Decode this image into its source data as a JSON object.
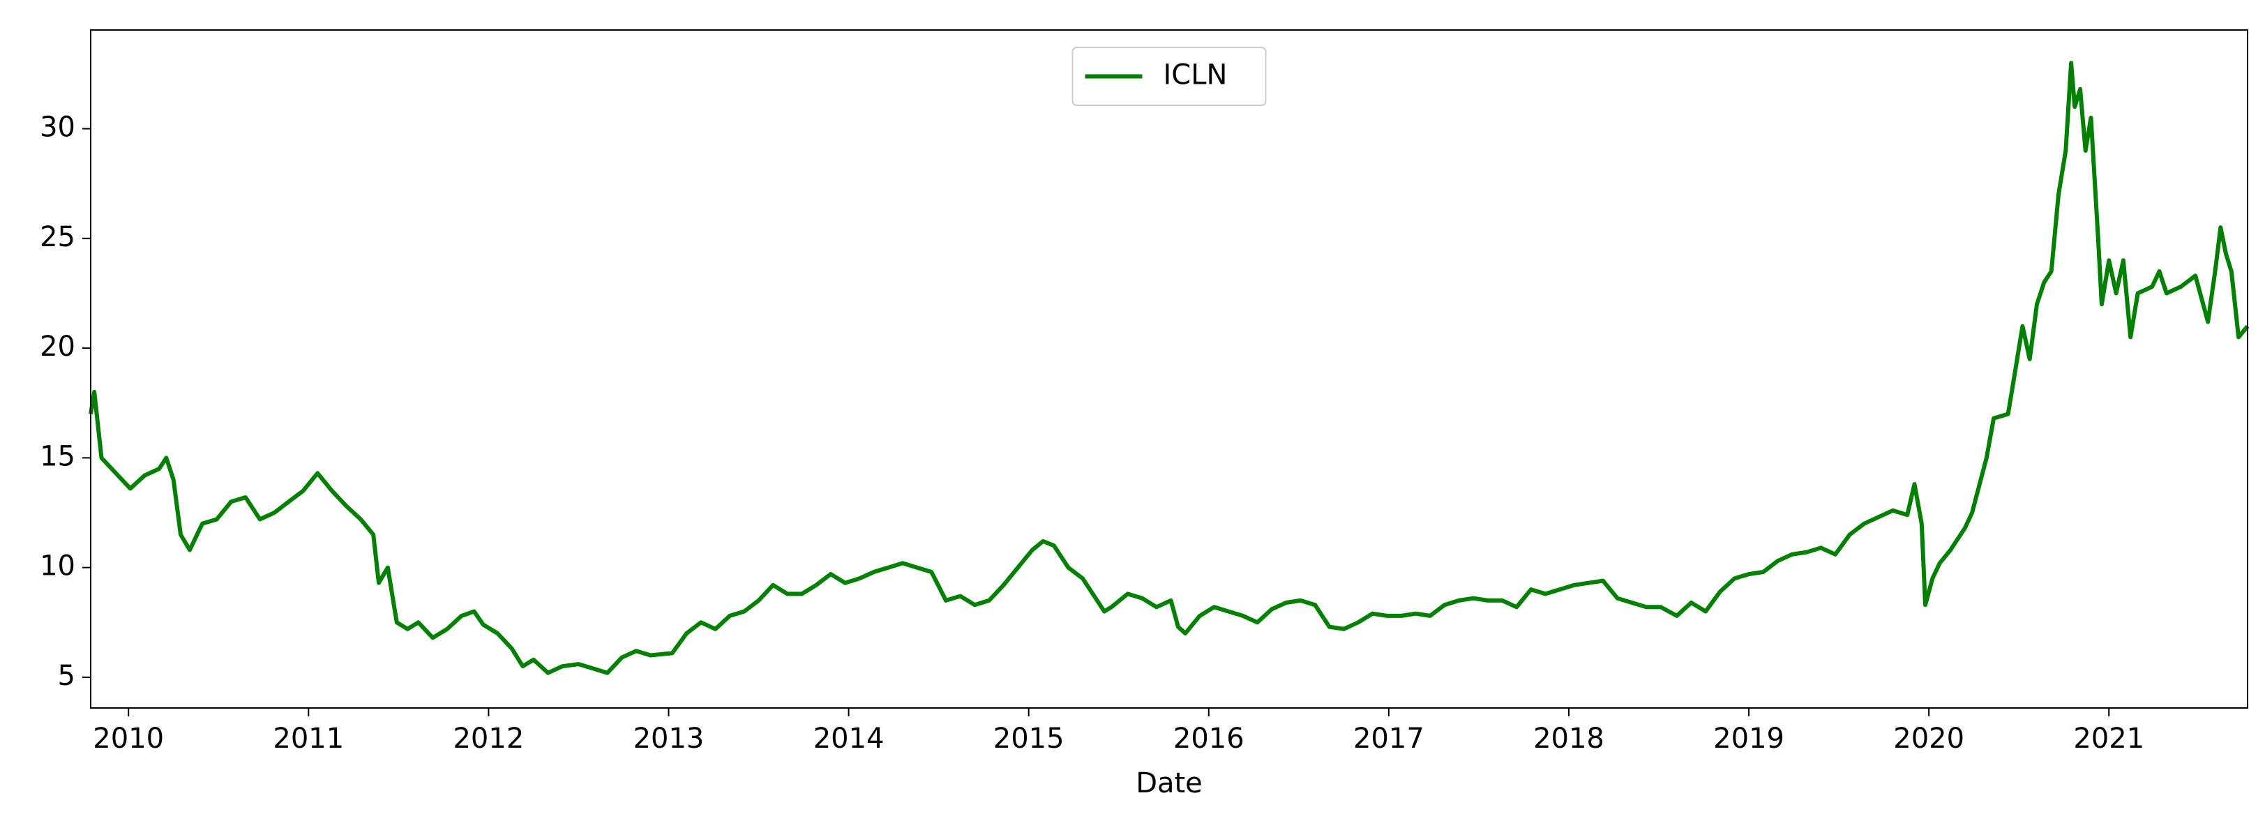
{
  "chart_data": {
    "type": "line",
    "xlabel": "Date",
    "x": [
      2009.79,
      2009.81,
      2009.85,
      2009.93,
      2010.01,
      2010.09,
      2010.17,
      2010.21,
      2010.25,
      2010.29,
      2010.34,
      2010.41,
      2010.49,
      2010.57,
      2010.65,
      2010.73,
      2010.81,
      2010.89,
      2010.97,
      2011.05,
      2011.13,
      2011.21,
      2011.29,
      2011.36,
      2011.39,
      2011.44,
      2011.49,
      2011.55,
      2011.61,
      2011.69,
      2011.77,
      2011.85,
      2011.92,
      2011.97,
      2012.05,
      2012.13,
      2012.19,
      2012.25,
      2012.33,
      2012.41,
      2012.5,
      2012.58,
      2012.66,
      2012.74,
      2012.82,
      2012.9,
      2013.02,
      2013.1,
      2013.18,
      2013.26,
      2013.34,
      2013.42,
      2013.5,
      2013.58,
      2013.66,
      2013.74,
      2013.82,
      2013.9,
      2013.98,
      2014.06,
      2014.14,
      2014.22,
      2014.3,
      2014.38,
      2014.46,
      2014.54,
      2014.62,
      2014.7,
      2014.78,
      2014.86,
      2014.94,
      2015.02,
      2015.08,
      2015.14,
      2015.22,
      2015.3,
      2015.38,
      2015.42,
      2015.46,
      2015.55,
      2015.63,
      2015.71,
      2015.79,
      2015.83,
      2015.87,
      2015.95,
      2016.03,
      2016.11,
      2016.19,
      2016.27,
      2016.35,
      2016.43,
      2016.51,
      2016.59,
      2016.67,
      2016.75,
      2016.83,
      2016.91,
      2016.99,
      2017.07,
      2017.15,
      2017.23,
      2017.31,
      2017.39,
      2017.47,
      2017.55,
      2017.63,
      2017.71,
      2017.79,
      2017.87,
      2017.95,
      2018.03,
      2018.11,
      2018.19,
      2018.27,
      2018.35,
      2018.43,
      2018.51,
      2018.6,
      2018.68,
      2018.76,
      2018.84,
      2018.92,
      2019.0,
      2019.08,
      2019.16,
      2019.24,
      2019.32,
      2019.4,
      2019.48,
      2019.56,
      2019.64,
      2019.72,
      2019.8,
      2019.88,
      2019.92,
      2019.96,
      2019.98,
      2020.02,
      2020.06,
      2020.12,
      2020.2,
      2020.24,
      2020.32,
      2020.36,
      2020.44,
      2020.48,
      2020.52,
      2020.56,
      2020.6,
      2020.64,
      2020.68,
      2020.72,
      2020.76,
      2020.79,
      2020.81,
      2020.84,
      2020.87,
      2020.9,
      2020.94,
      2020.96,
      2021.0,
      2021.04,
      2021.08,
      2021.12,
      2021.16,
      2021.24,
      2021.28,
      2021.32,
      2021.4,
      2021.48,
      2021.55,
      2021.59,
      2021.62,
      2021.65,
      2021.68,
      2021.72,
      2021.77
    ],
    "series": [
      {
        "name": "ICLN",
        "color": "#008000",
        "values": [
          17,
          18,
          15,
          14.3,
          13.6,
          14.2,
          14.5,
          15,
          14,
          11.5,
          10.8,
          12,
          12.2,
          13,
          13.2,
          12.2,
          12.5,
          13,
          13.5,
          14.3,
          13.5,
          12.8,
          12.2,
          11.5,
          9.3,
          10,
          7.5,
          7.2,
          7.5,
          6.8,
          7.2,
          7.8,
          8,
          7.4,
          7,
          6.3,
          5.5,
          5.8,
          5.2,
          5.5,
          5.6,
          5.4,
          5.2,
          5.9,
          6.2,
          6,
          6.1,
          7,
          7.5,
          7.2,
          7.8,
          8,
          8.5,
          9.2,
          8.8,
          8.8,
          9.2,
          9.7,
          9.3,
          9.5,
          9.8,
          10,
          10.2,
          10,
          9.8,
          8.5,
          8.7,
          8.3,
          8.5,
          9.2,
          10,
          10.8,
          11.2,
          11,
          10,
          9.5,
          8.5,
          8,
          8.2,
          8.8,
          8.6,
          8.2,
          8.5,
          7.3,
          7,
          7.8,
          8.2,
          8,
          7.8,
          7.5,
          8.1,
          8.4,
          8.5,
          8.3,
          7.3,
          7.2,
          7.5,
          7.9,
          7.8,
          7.8,
          7.9,
          7.8,
          8.3,
          8.5,
          8.6,
          8.5,
          8.5,
          8.2,
          9,
          8.8,
          9,
          9.2,
          9.3,
          9.4,
          8.6,
          8.4,
          8.2,
          8.2,
          7.8,
          8.4,
          8,
          8.9,
          9.5,
          9.7,
          9.8,
          10.3,
          10.6,
          10.7,
          10.9,
          10.6,
          11.5,
          12,
          12.3,
          12.6,
          12.4,
          13.8,
          12,
          8.3,
          9.5,
          10.2,
          10.8,
          11.8,
          12.5,
          15,
          16.8,
          17,
          19,
          21,
          19.5,
          22,
          23,
          23.5,
          27,
          29,
          33,
          31,
          31.8,
          29,
          30.5,
          25,
          22,
          24,
          22.5,
          24,
          20.5,
          22.5,
          22.8,
          23.5,
          22.5,
          22.8,
          23.3,
          21.2,
          23.5,
          25.5,
          24.3,
          23.5,
          20.5,
          21
        ]
      }
    ],
    "xlim": [
      2009.79,
      2021.77
    ],
    "xticks": [
      2010,
      2011,
      2012,
      2013,
      2014,
      2015,
      2016,
      2017,
      2018,
      2019,
      2020,
      2021
    ],
    "ylim": [
      3.6,
      34.5
    ],
    "yticks": [
      5,
      10,
      15,
      20,
      25,
      30
    ],
    "grid": false,
    "legend": "upper center"
  }
}
